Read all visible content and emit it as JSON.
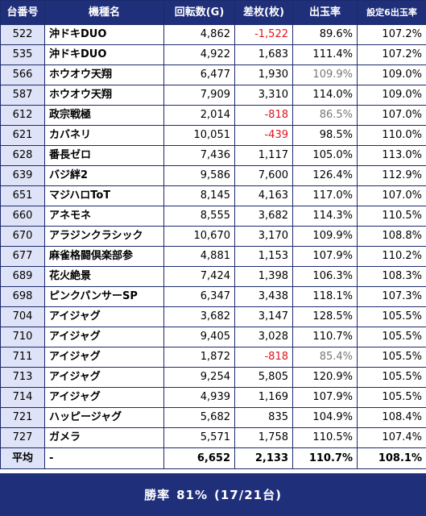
{
  "header": {
    "col_id": "台番号",
    "col_model": "機種名",
    "col_spins": "回転数(G)",
    "col_diff": "差枚(枚)",
    "col_payout": "出玉率",
    "col_setting6": "設定6出玉率"
  },
  "rows": [
    {
      "id": "522",
      "model": "沖ドキDUO",
      "spins": "4,862",
      "diff": "-1,522",
      "payout": "89.6%",
      "setting6": "107.2%"
    },
    {
      "id": "535",
      "model": "沖ドキDUO",
      "spins": "4,922",
      "diff": "1,683",
      "payout": "111.4%",
      "setting6": "107.2%"
    },
    {
      "id": "566",
      "model": "ホウオウ天翔",
      "spins": "6,477",
      "diff": "1,930",
      "payout": "109.9%",
      "setting6": "109.0%"
    },
    {
      "id": "587",
      "model": "ホウオウ天翔",
      "spins": "7,909",
      "diff": "3,310",
      "payout": "114.0%",
      "setting6": "109.0%"
    },
    {
      "id": "612",
      "model": "政宗戦極",
      "spins": "2,014",
      "diff": "-818",
      "payout": "86.5%",
      "setting6": "107.0%"
    },
    {
      "id": "621",
      "model": "カバネリ",
      "spins": "10,051",
      "diff": "-439",
      "payout": "98.5%",
      "setting6": "110.0%"
    },
    {
      "id": "628",
      "model": "番長ゼロ",
      "spins": "7,436",
      "diff": "1,117",
      "payout": "105.0%",
      "setting6": "113.0%"
    },
    {
      "id": "639",
      "model": "バジ絆2",
      "spins": "9,586",
      "diff": "7,600",
      "payout": "126.4%",
      "setting6": "112.9%"
    },
    {
      "id": "651",
      "model": "マジハロToT",
      "spins": "8,145",
      "diff": "4,163",
      "payout": "117.0%",
      "setting6": "107.0%"
    },
    {
      "id": "660",
      "model": "アネモネ",
      "spins": "8,555",
      "diff": "3,682",
      "payout": "114.3%",
      "setting6": "110.5%"
    },
    {
      "id": "670",
      "model": "アラジンクラシック",
      "spins": "10,670",
      "diff": "3,170",
      "payout": "109.9%",
      "setting6": "108.8%"
    },
    {
      "id": "677",
      "model": "麻雀格闘倶楽部参",
      "spins": "4,881",
      "diff": "1,153",
      "payout": "107.9%",
      "setting6": "110.2%"
    },
    {
      "id": "689",
      "model": "花火絶景",
      "spins": "7,424",
      "diff": "1,398",
      "payout": "106.3%",
      "setting6": "108.3%"
    },
    {
      "id": "698",
      "model": "ピンクパンサーSP",
      "spins": "6,347",
      "diff": "3,438",
      "payout": "118.1%",
      "setting6": "107.3%"
    },
    {
      "id": "704",
      "model": "アイジャグ",
      "spins": "3,682",
      "diff": "3,147",
      "payout": "128.5%",
      "setting6": "105.5%"
    },
    {
      "id": "710",
      "model": "アイジャグ",
      "spins": "9,405",
      "diff": "3,028",
      "payout": "110.7%",
      "setting6": "105.5%"
    },
    {
      "id": "711",
      "model": "アイジャグ",
      "spins": "1,872",
      "diff": "-818",
      "payout": "85.4%",
      "setting6": "105.5%"
    },
    {
      "id": "713",
      "model": "アイジャグ",
      "spins": "9,254",
      "diff": "5,805",
      "payout": "120.9%",
      "setting6": "105.5%"
    },
    {
      "id": "714",
      "model": "アイジャグ",
      "spins": "4,939",
      "diff": "1,169",
      "payout": "107.9%",
      "setting6": "105.5%"
    },
    {
      "id": "721",
      "model": "ハッピージャグ",
      "spins": "5,682",
      "diff": "835",
      "payout": "104.9%",
      "setting6": "108.4%"
    },
    {
      "id": "727",
      "model": "ガメラ",
      "spins": "5,571",
      "diff": "1,758",
      "payout": "110.5%",
      "setting6": "107.4%"
    }
  ],
  "average": {
    "label": "平均",
    "model": "-",
    "spins": "6,652",
    "diff": "2,133",
    "payout": "110.7%",
    "setting6": "108.1%"
  },
  "footer": {
    "win_rate_label": "勝率",
    "win_rate_value": "81%",
    "win_rate_detail": "(17/21台)"
  },
  "colors": {
    "header_bg": "#1f2f7a",
    "id_cell_bg": "#dfe3f7",
    "negative": "#e0141e",
    "dim_payout": "#777777"
  }
}
